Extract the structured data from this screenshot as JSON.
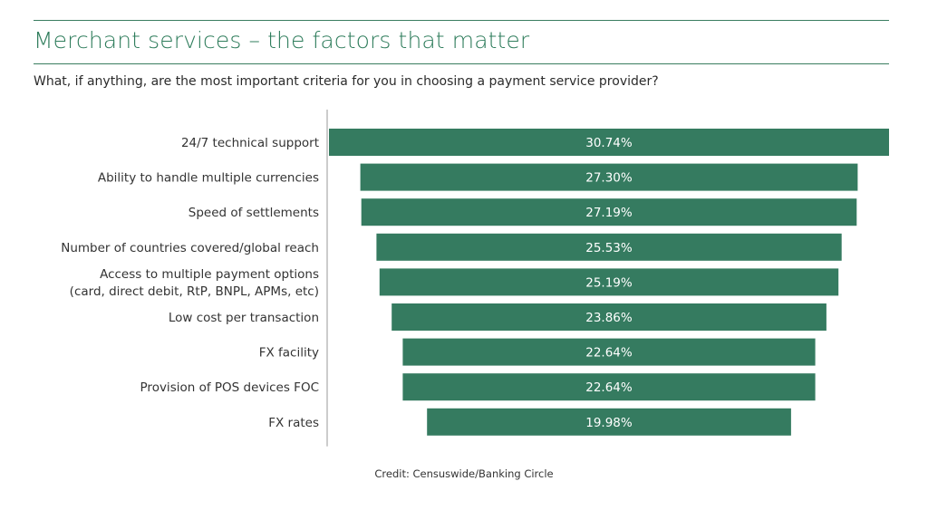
{
  "header": {
    "title": "Merchant services – the factors that matter",
    "subtitle": "What, if anything, are the most important criteria for you in choosing a payment service provider?"
  },
  "footer": {
    "credit": "Credit: Censuswide/Banking Circle"
  },
  "colors": {
    "bar": "#357b60",
    "rule": "#3a7d60",
    "title": "#2f7d5c",
    "axis": "#bbbbbb"
  },
  "chart_data": {
    "type": "bar",
    "orientation": "horizontal",
    "categories": [
      [
        "24/7 technical support"
      ],
      [
        "Ability to handle multiple currencies"
      ],
      [
        "Speed of settlements"
      ],
      [
        "Number of countries covered/global reach"
      ],
      [
        "Access to multiple payment options",
        "(card, direct debit, RtP, BNPL, APMs, etc)"
      ],
      [
        "Low cost per transaction"
      ],
      [
        "FX facility"
      ],
      [
        "Provision of POS devices FOC"
      ],
      [
        "FX rates"
      ]
    ],
    "values": [
      30.74,
      27.3,
      27.19,
      25.53,
      25.19,
      23.86,
      22.64,
      22.64,
      19.98
    ],
    "value_labels": [
      "30.74%",
      "27.30%",
      "27.19%",
      "25.53%",
      "25.19%",
      "23.86%",
      "22.64%",
      "22.64%",
      "19.98%"
    ],
    "bar_alignment": "centered",
    "xlim": [
      0,
      30.74
    ],
    "grid": false,
    "legend": "none"
  }
}
